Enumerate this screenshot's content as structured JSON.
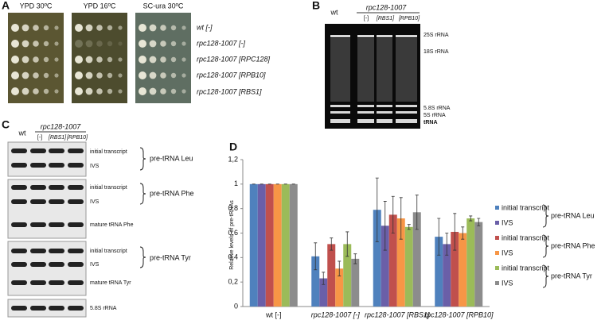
{
  "panel_a": {
    "letter": "A",
    "conditions": [
      "YPD 30ºC",
      "YPD 16ºC",
      "SC-ura 30ºC"
    ],
    "strains": [
      "wt [-]",
      "rpc128-1007 [-]",
      "rpc128-1007 [RPC128]",
      "rpc128-1007 [RPB10]",
      "rpc128-1007 [RBS1]"
    ]
  },
  "panel_b": {
    "letter": "B",
    "wt": "wt",
    "strain": "rpc128-1007",
    "plasmids": [
      "[-]",
      "[RBS1]",
      "[RPB10]"
    ],
    "bands": [
      "25S rRNA",
      "18S rRNA",
      "5.8S rRNA",
      "5S rRNA",
      "tRNA"
    ]
  },
  "panel_c": {
    "letter": "C",
    "wt": "wt",
    "strain": "rpc128-1007",
    "plasmids": [
      "[-]",
      "[RBS1]",
      "[RPB10]"
    ],
    "labels": [
      "initial transcript",
      "IVS",
      "pre-tRNA Leu",
      "initial transcript",
      "IVS",
      "pre-tRNA Phe",
      "mature tRNA Phe",
      "initial transcript",
      "IVS",
      "pre-tRNA Tyr",
      "mature tRNA Tyr",
      "5.8S rRNA"
    ]
  },
  "panel_d": {
    "letter": "D"
  },
  "chart_data": {
    "type": "bar",
    "y_label": "Relative levels of pre-tRNAs",
    "categories": [
      "wt [-]",
      "rpc128-1007 [-]",
      "rpc128-1007 [RBS1]",
      "rpc128-1007 [RPB10]"
    ],
    "series": [
      {
        "name": "initial transcript",
        "color": "#4f81bd",
        "values": [
          1,
          0.41,
          0.79,
          0.57
        ],
        "errors": [
          0,
          0.11,
          0.26,
          0.15
        ]
      },
      {
        "name": "IVS",
        "color": "#6a5fa8",
        "values": [
          1,
          0.23,
          0.66,
          0.51
        ],
        "errors": [
          0,
          0.05,
          0.2,
          0.09
        ]
      },
      {
        "name": "initial transcript",
        "color": "#c0504d",
        "values": [
          1,
          0.51,
          0.75,
          0.61
        ],
        "errors": [
          0,
          0.05,
          0.15,
          0.15
        ]
      },
      {
        "name": "IVS",
        "color": "#f79646",
        "values": [
          1,
          0.31,
          0.72,
          0.6
        ],
        "errors": [
          0,
          0.06,
          0.17,
          0.05
        ]
      },
      {
        "name": "initial transcript",
        "color": "#9bbb59",
        "values": [
          1,
          0.51,
          0.65,
          0.72
        ],
        "errors": [
          0,
          0.1,
          0.02,
          0.02
        ]
      },
      {
        "name": "IVS",
        "color": "#8c8c8c",
        "values": [
          1,
          0.39,
          0.77,
          0.69
        ],
        "errors": [
          0,
          0.04,
          0.14,
          0.03
        ]
      }
    ],
    "legend_groups": [
      "pre-tRNA Leu",
      "pre-tRNA Phe",
      "pre-tRNA Tyr"
    ],
    "ylim": [
      0,
      1.2
    ],
    "yticks": [
      0,
      {
        "value": 0.2,
        "label": "0,2"
      },
      {
        "value": 0.4,
        "label": "0,4"
      },
      {
        "value": 0.6,
        "label": "0,6"
      },
      {
        "value": 0.8,
        "label": "0,8"
      },
      1,
      {
        "value": 1.2,
        "label": "1,2"
      }
    ],
    "grid": false
  }
}
